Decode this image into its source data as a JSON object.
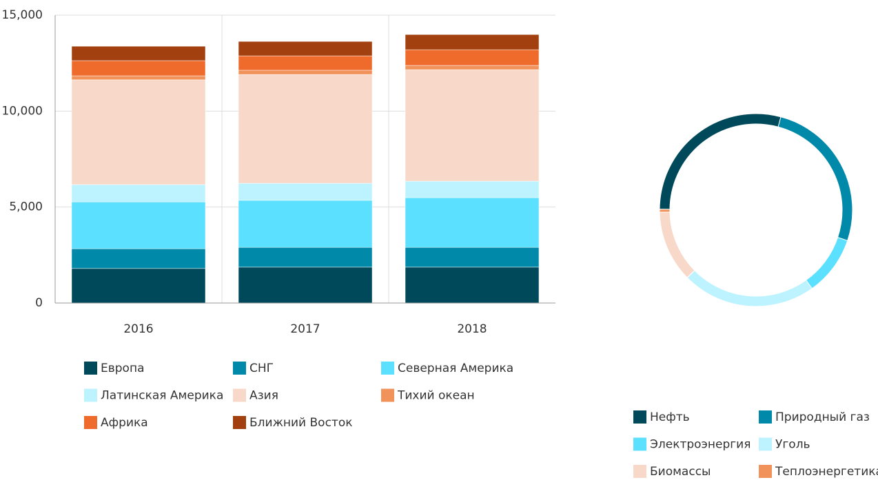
{
  "chart_data": [
    {
      "type": "stacked_bar",
      "categories": [
        "2016",
        "2017",
        "2018"
      ],
      "series": [
        {
          "name": "Европа",
          "color": "#00495a",
          "values": [
            1800,
            1870,
            1870
          ]
        },
        {
          "name": "СНГ",
          "color": "#0089a8",
          "values": [
            1030,
            1030,
            1030
          ]
        },
        {
          "name": "Северная Америка",
          "color": "#5ce0ff",
          "values": [
            2440,
            2450,
            2590
          ]
        },
        {
          "name": "Латинская Америка",
          "color": "#bdf3ff",
          "values": [
            900,
            890,
            860
          ]
        },
        {
          "name": "Азия",
          "color": "#f8d9c9",
          "values": [
            5460,
            5670,
            5810
          ]
        },
        {
          "name": "Тихий океан",
          "color": "#f2925b",
          "values": [
            210,
            220,
            220
          ]
        },
        {
          "name": "Африка",
          "color": "#ef6b2b",
          "values": [
            790,
            750,
            820
          ]
        },
        {
          "name": "Ближний Восток",
          "color": "#a3400f",
          "values": [
            750,
            750,
            790
          ]
        }
      ],
      "ylim": [
        0,
        15000
      ],
      "yticks": [
        0,
        {
          "value": 5000,
          "label": "5,000"
        },
        {
          "value": 10000,
          "label": "10,000"
        },
        {
          "value": 15000,
          "label": "15,000"
        }
      ],
      "grid": true
    },
    {
      "type": "donut",
      "categories": [
        "Нефть",
        "Природный газ",
        "Электроэнергия",
        "Уголь",
        "Биомассы",
        "Теплоэнергетика"
      ],
      "values": [
        29,
        26,
        10,
        22.5,
        12,
        0.5
      ],
      "colors": [
        "#00495a",
        "#0089a8",
        "#5ce0ff",
        "#bdf3ff",
        "#f8d9c9",
        "#f2925b"
      ]
    }
  ]
}
